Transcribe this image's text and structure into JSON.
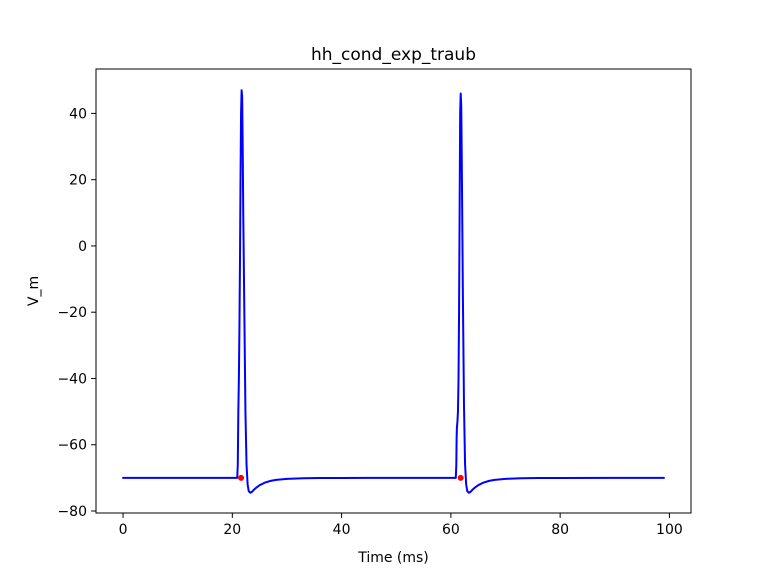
{
  "chart_data": {
    "type": "line",
    "title": "hh_cond_exp_traub",
    "xlabel": "Time (ms)",
    "ylabel": "V_m",
    "xlim": [
      -4.95,
      103.95
    ],
    "ylim": [
      -80.6,
      53.4
    ],
    "xticks": [
      0,
      20,
      40,
      60,
      80,
      100
    ],
    "yticks": [
      -80,
      -60,
      -40,
      -20,
      0,
      20,
      40
    ],
    "grid": false,
    "series": [
      {
        "color": "#0000ff",
        "x": [
          0,
          20.9,
          21.0,
          21.05,
          21.1,
          21.2,
          21.3,
          21.4,
          21.5,
          21.6,
          21.7,
          21.8,
          21.9,
          22.0,
          22.2,
          22.4,
          22.6,
          22.8,
          23.0,
          23.3,
          23.6,
          24.0,
          24.5,
          25.0,
          26.0,
          27.0,
          28.0,
          30.0,
          33.0,
          36.0,
          40.0,
          45.0,
          50.0,
          55.0,
          60.9,
          61.0,
          61.05,
          61.1,
          61.2,
          61.3,
          61.4,
          61.5,
          61.6,
          61.7,
          61.8,
          61.9,
          62.0,
          62.2,
          62.4,
          62.6,
          62.8,
          63.0,
          63.3,
          63.6,
          64.0,
          64.5,
          65.0,
          66.0,
          67.0,
          68.0,
          70.0,
          73.0,
          76.0,
          80.0,
          90.0,
          99.0
        ],
        "y": [
          -70,
          -70,
          -66,
          -58,
          -50,
          -40,
          -25,
          -5,
          20,
          40,
          47,
          45,
          30,
          10,
          -20,
          -50,
          -66,
          -72,
          -74,
          -74.5,
          -74.2,
          -73.5,
          -72.8,
          -72.2,
          -71.4,
          -70.9,
          -70.6,
          -70.3,
          -70.1,
          -70.05,
          -70.02,
          -70.01,
          -70,
          -70,
          -70,
          -66,
          -58,
          -55,
          -53,
          -50,
          -40,
          -20,
          10,
          40,
          46,
          42,
          25,
          -15,
          -48,
          -66,
          -72,
          -74,
          -74.5,
          -74.2,
          -73.5,
          -72.8,
          -72.2,
          -71.4,
          -70.9,
          -70.6,
          -70.3,
          -70.1,
          -70.05,
          -70.02,
          -70,
          -70
        ]
      }
    ],
    "markers": {
      "color": "#ff0000",
      "x": [
        21.6,
        61.8
      ],
      "y": [
        -70,
        -70
      ]
    }
  }
}
